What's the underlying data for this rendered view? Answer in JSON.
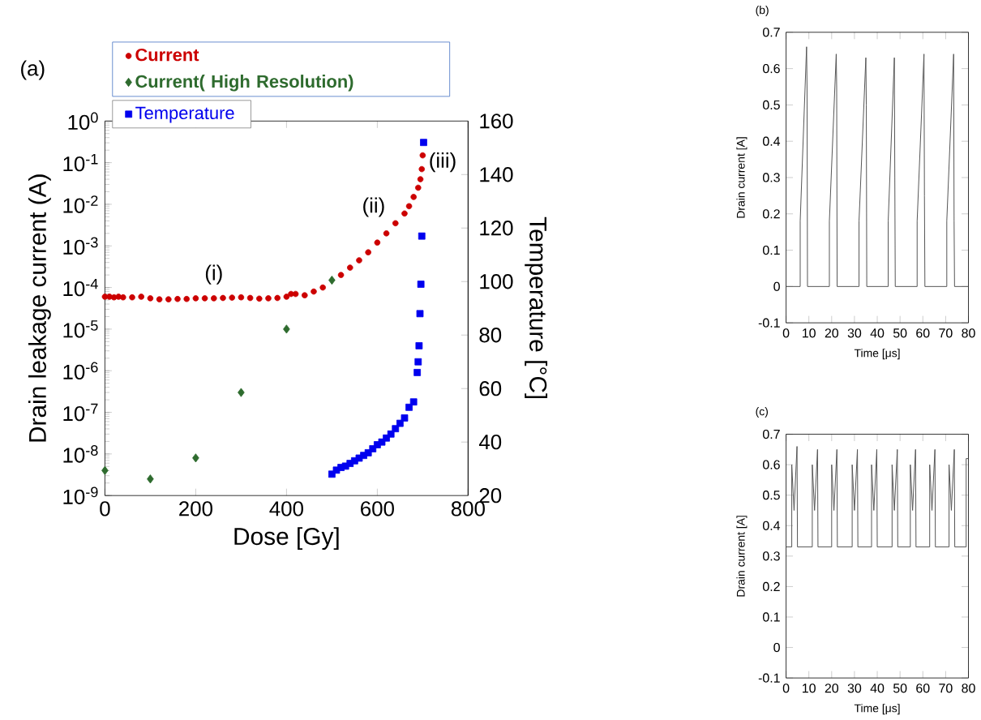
{
  "chart_data": [
    {
      "type": "scatter",
      "title": "(a)",
      "xlabel": "Dose [Gy]",
      "ylabel": "Drain leakage current (A)",
      "y2label": "Temperature [°C]",
      "log": "y",
      "legend": "top left",
      "xlim": [
        0,
        800
      ],
      "xticks": [
        0,
        200,
        400,
        600,
        800
      ],
      "ylim": [
        1e-09,
        1
      ],
      "yticks": [
        {
          "value": 1e-09,
          "label": "10$^{-9}$"
        },
        {
          "value": 1e-08,
          "label": "10$^{-8}$"
        },
        {
          "value": 1e-07,
          "label": "10$^{-7}$"
        },
        {
          "value": 1e-06,
          "label": "10$^{-6}$"
        },
        {
          "value": 1e-05,
          "label": "10$^{-5}$"
        },
        {
          "value": 0.0001,
          "label": "10$^{-4}$"
        },
        {
          "value": 0.001,
          "label": "10$^{-3}$"
        },
        {
          "value": 0.01,
          "label": "10$^{-2}$"
        },
        {
          "value": 0.1,
          "label": "10$^{-1}$"
        },
        {
          "value": 1,
          "label": "10$^{0}$"
        }
      ],
      "y2lim": [
        20,
        160
      ],
      "y2ticks": [
        20,
        40,
        60,
        80,
        100,
        120,
        140,
        160
      ],
      "annotations": [
        "(i)",
        "(ii)",
        "(iii)"
      ],
      "series": [
        {
          "name": "Current",
          "color": "#cc0000",
          "marker": "circle",
          "x": [
            0,
            10,
            20,
            30,
            40,
            60,
            80,
            100,
            120,
            140,
            160,
            180,
            200,
            220,
            240,
            260,
            280,
            300,
            320,
            340,
            360,
            380,
            400,
            410,
            420,
            440,
            460,
            480,
            500,
            520,
            540,
            560,
            580,
            600,
            620,
            640,
            660,
            670,
            680,
            690,
            695,
            698,
            700
          ],
          "values": [
            6e-05,
            6e-05,
            5.8e-05,
            6e-05,
            5.8e-05,
            5.8e-05,
            6e-05,
            5.5e-05,
            5.2e-05,
            5.2e-05,
            5.3e-05,
            5.3e-05,
            5.5e-05,
            5.5e-05,
            5.5e-05,
            5.6e-05,
            5.7e-05,
            5.8e-05,
            5.6e-05,
            5.4e-05,
            5.5e-05,
            5.6e-05,
            6e-05,
            7e-05,
            7e-05,
            6.5e-05,
            8e-05,
            0.0001,
            null,
            0.0002,
            0.0003,
            0.00045,
            0.0007,
            0.0012,
            0.002,
            0.0035,
            0.006,
            0.009,
            0.015,
            0.025,
            0.04,
            0.07,
            0.15
          ]
        },
        {
          "name": "Current( High Resolution)",
          "color": "#2e6b2e",
          "marker": "diamond",
          "x": [
            0,
            100,
            200,
            300,
            400,
            500
          ],
          "values": [
            4e-09,
            2.5e-09,
            8e-09,
            3e-07,
            1e-05,
            0.00015
          ]
        },
        {
          "name": "Temperature",
          "color": "#0000ee",
          "marker": "square",
          "axis": "y2",
          "x": [
            500,
            510,
            520,
            530,
            540,
            550,
            560,
            570,
            580,
            590,
            600,
            610,
            620,
            630,
            640,
            650,
            660,
            670,
            680,
            688,
            690,
            692,
            694,
            696,
            698,
            702
          ],
          "values": [
            28,
            29.5,
            30.5,
            31,
            32,
            33,
            34,
            35,
            36,
            37.5,
            39,
            40,
            41.5,
            43,
            45,
            47,
            49,
            53,
            55,
            66,
            70,
            76,
            88,
            99,
            117,
            152
          ]
        }
      ]
    },
    {
      "type": "line",
      "title": "(b)",
      "xlabel": "Time [μs]",
      "ylabel": "Drain current [A]",
      "xlim": [
        0,
        80
      ],
      "xticks": [
        0,
        10,
        20,
        30,
        40,
        50,
        60,
        70,
        80
      ],
      "ylim": [
        -0.1,
        0.7
      ],
      "yticks": [
        -0.1,
        0,
        0.1,
        0.2,
        0.3,
        0.4,
        0.5,
        0.6,
        0.7
      ],
      "series": [
        {
          "color": "#555555",
          "x": [
            0,
            5.2,
            6.2,
            6.2,
            9,
            9.2,
            9.4,
            10,
            18,
            19,
            19,
            22,
            22.2,
            22.4,
            23,
            31,
            32,
            32,
            35,
            35.2,
            35.4,
            36,
            43.8,
            44.8,
            44.8,
            47.5,
            47.7,
            47.9,
            48.5,
            56.5,
            57.5,
            57.5,
            60.5,
            60.7,
            60.9,
            61.5,
            69.5,
            70.5,
            70.5,
            73.5,
            73.7,
            73.9,
            74.5,
            80
          ],
          "values": [
            0,
            0,
            0,
            0.18,
            0.66,
            0.55,
            0,
            0,
            0,
            0,
            0.18,
            0.64,
            0.55,
            0,
            0,
            0,
            0,
            0.18,
            0.63,
            0.5,
            0,
            0,
            0,
            0,
            0.18,
            0.63,
            0.3,
            0,
            0,
            0,
            0,
            0.18,
            0.64,
            0.25,
            0,
            0,
            0,
            0,
            0.18,
            0.64,
            0.18,
            0,
            0,
            0
          ]
        }
      ]
    },
    {
      "type": "line",
      "title": "(c)",
      "xlabel": "Time [μs]",
      "ylabel": "Drain current [A]",
      "xlim": [
        0,
        80
      ],
      "xticks": [
        0,
        10,
        20,
        30,
        40,
        50,
        60,
        70,
        80
      ],
      "ylim": [
        -0.1,
        0.7
      ],
      "yticks": [
        -0.1,
        0,
        0.1,
        0.2,
        0.3,
        0.4,
        0.5,
        0.6,
        0.7
      ],
      "series": [
        {
          "color": "#555555",
          "x": [
            0,
            2.5,
            2.5,
            3.5,
            4.8,
            5,
            11.5,
            11.5,
            12.5,
            13.8,
            14,
            20,
            20,
            21,
            22.3,
            22.5,
            29,
            29,
            30,
            31.3,
            31.5,
            37.5,
            37.5,
            38.5,
            39.8,
            40,
            46.5,
            46.5,
            47.5,
            48.8,
            49,
            54.5,
            54.5,
            55.5,
            56.8,
            57,
            63,
            63,
            64,
            65.3,
            65.5,
            71.5,
            71.5,
            72.5,
            73.8,
            74,
            79,
            79,
            80
          ],
          "values": [
            0.33,
            0.33,
            0.6,
            0.45,
            0.66,
            0.33,
            0.33,
            0.6,
            0.45,
            0.65,
            0.33,
            0.33,
            0.6,
            0.45,
            0.65,
            0.33,
            0.33,
            0.6,
            0.45,
            0.65,
            0.33,
            0.33,
            0.6,
            0.45,
            0.65,
            0.33,
            0.33,
            0.6,
            0.45,
            0.65,
            0.33,
            0.33,
            0.6,
            0.45,
            0.65,
            0.33,
            0.33,
            0.6,
            0.45,
            0.65,
            0.33,
            0.33,
            0.6,
            0.45,
            0.65,
            0.33,
            0.33,
            0.62,
            0.62
          ]
        }
      ]
    }
  ]
}
